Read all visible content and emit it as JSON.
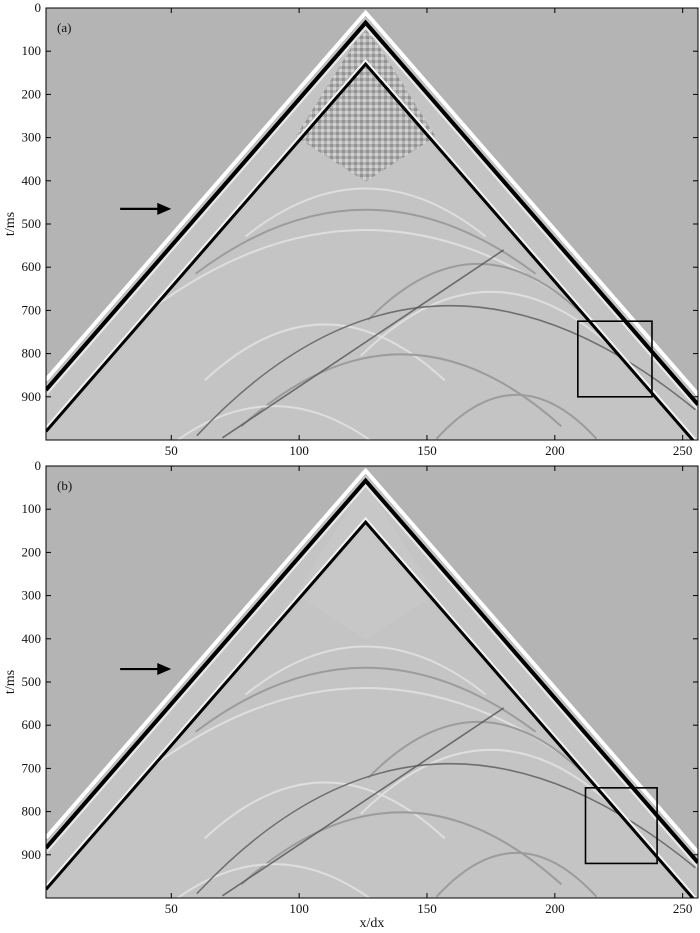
{
  "chart_data": [
    {
      "type": "heatmap",
      "panel_label": "(a)",
      "ylabel": "t/ms",
      "xlabel": "",
      "xlim": [
        1,
        256
      ],
      "ylim": [
        0,
        1000
      ],
      "x_ticks": [
        50,
        100,
        150,
        200,
        250
      ],
      "y_ticks": [
        0,
        100,
        200,
        300,
        400,
        500,
        600,
        700,
        800,
        900
      ],
      "apex": {
        "x": 126,
        "t": 20
      },
      "direct_arrival_black_lag_ms": 40,
      "reflection_lag_ms": 110,
      "arrow": {
        "x_from": 30,
        "x_to": 50,
        "t": 465
      },
      "box": {
        "x_range": [
          209,
          238
        ],
        "t_range": [
          725,
          900
        ]
      },
      "style": "dispersive"
    },
    {
      "type": "heatmap",
      "panel_label": "(b)",
      "ylabel": "t/ms",
      "xlabel": "x/dx",
      "xlim": [
        1,
        256
      ],
      "ylim": [
        0,
        1000
      ],
      "x_ticks": [
        50,
        100,
        150,
        200,
        250
      ],
      "y_ticks": [
        0,
        100,
        200,
        300,
        400,
        500,
        600,
        700,
        800,
        900
      ],
      "apex": {
        "x": 126,
        "t": 20
      },
      "direct_arrival_black_lag_ms": 40,
      "reflection_lag_ms": 110,
      "arrow": {
        "x_from": 30,
        "x_to": 50,
        "t": 470
      },
      "box": {
        "x_range": [
          212,
          240
        ],
        "t_range": [
          745,
          920
        ]
      },
      "style": "clean"
    }
  ],
  "colors": {
    "background": "#b4b4b4",
    "event_black": "#000000",
    "event_white": "#ffffff",
    "frame": "#000000"
  }
}
